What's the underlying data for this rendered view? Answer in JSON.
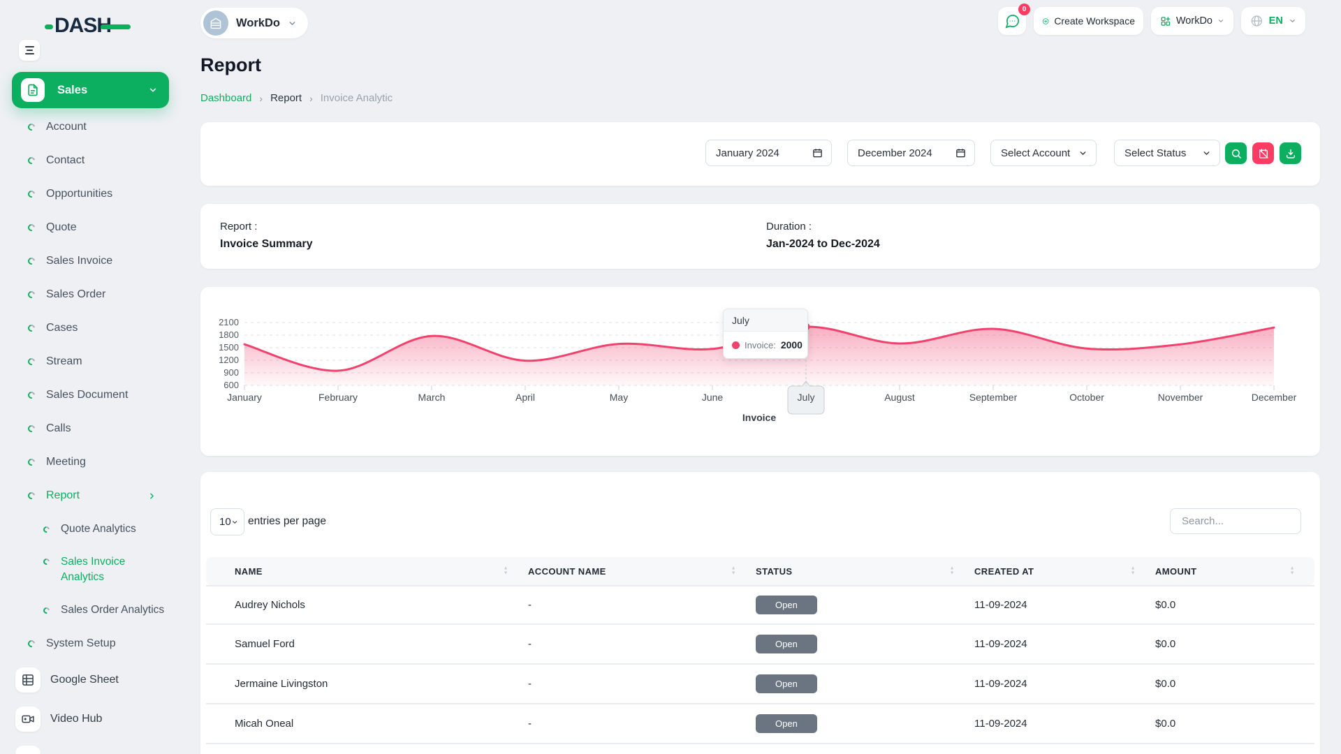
{
  "brand": {
    "name": "DASH"
  },
  "workspace_switcher": {
    "name": "WorkDo"
  },
  "header": {
    "messages_badge": "0",
    "create_workspace_label": "Create Workspace",
    "workspace_menu_label": "WorkDo",
    "language_label": "EN"
  },
  "sidebar": {
    "group": {
      "label": "Sales"
    },
    "items": [
      {
        "label": "Account",
        "kind": "item",
        "icon": "circle-bullet-icon"
      },
      {
        "label": "Contact",
        "kind": "item",
        "icon": "circle-bullet-icon"
      },
      {
        "label": "Opportunities",
        "kind": "item",
        "icon": "circle-bullet-icon"
      },
      {
        "label": "Quote",
        "kind": "item",
        "icon": "circle-bullet-icon"
      },
      {
        "label": "Sales Invoice",
        "kind": "item",
        "icon": "circle-bullet-icon"
      },
      {
        "label": "Sales Order",
        "kind": "item",
        "icon": "circle-bullet-icon"
      },
      {
        "label": "Cases",
        "kind": "item",
        "icon": "circle-bullet-icon"
      },
      {
        "label": "Stream",
        "kind": "item",
        "icon": "circle-bullet-icon"
      },
      {
        "label": "Sales Document",
        "kind": "item",
        "icon": "circle-bullet-icon"
      },
      {
        "label": "Calls",
        "kind": "item",
        "icon": "circle-bullet-icon"
      },
      {
        "label": "Meeting",
        "kind": "item",
        "icon": "circle-bullet-icon"
      },
      {
        "label": "Report",
        "kind": "item",
        "icon": "circle-bullet-icon",
        "active": true,
        "chevron": "right"
      },
      {
        "label": "Quote Analytics",
        "kind": "sub",
        "icon": "circle-bullet-icon"
      },
      {
        "label": "Sales Invoice Analytics",
        "kind": "sub",
        "icon": "circle-bullet-icon",
        "active": true,
        "wrap": true
      },
      {
        "label": "Sales Order Analytics",
        "kind": "sub",
        "icon": "circle-bullet-icon"
      },
      {
        "label": "System Setup",
        "kind": "item",
        "icon": "circle-bullet-icon"
      },
      {
        "label": "Google Sheet",
        "kind": "app",
        "icon": "sheet-icon"
      },
      {
        "label": "Video Hub",
        "kind": "app",
        "icon": "video-icon"
      },
      {
        "label": "",
        "kind": "app",
        "icon": "more-icon"
      }
    ]
  },
  "page": {
    "title": "Report",
    "breadcrumb": [
      "Dashboard",
      "Report",
      "Invoice Analytic"
    ]
  },
  "filters": {
    "from_value": "January 2024",
    "to_value": "December 2024",
    "account_value": "Select Account",
    "status_value": "Select Status"
  },
  "summary": {
    "report_label": "Report :",
    "report_value": "Invoice Summary",
    "duration_label": "Duration :",
    "duration_value": "Jan-2024 to Dec-2024"
  },
  "chart_data": {
    "type": "area",
    "x": [
      "January",
      "February",
      "March",
      "April",
      "May",
      "June",
      "July",
      "August",
      "September",
      "October",
      "November",
      "December"
    ],
    "series": [
      {
        "name": "Invoice",
        "values": [
          1580,
          950,
          1780,
          1190,
          1590,
          1470,
          2000,
          1600,
          1950,
          1480,
          1580,
          1980
        ]
      }
    ],
    "ylim": [
      600,
      2100
    ],
    "yticks": [
      600,
      900,
      1200,
      1500,
      1800,
      2100
    ],
    "grid": "horizontal-dashed",
    "legend": "Invoice",
    "legend_position": "bottom",
    "line_color": "#f1416c",
    "tooltip": {
      "month": "July",
      "series_label": "Invoice:",
      "value": "2000",
      "highlight_index": 6
    }
  },
  "table": {
    "page_size": "10",
    "page_size_suffix": "entries per page",
    "search_placeholder": "Search...",
    "columns": [
      "NAME",
      "ACCOUNT NAME",
      "STATUS",
      "CREATED AT",
      "AMOUNT"
    ],
    "rows": [
      {
        "name": "Audrey Nichols",
        "account_name": "-",
        "status": "Open",
        "created_at": "11-09-2024",
        "amount": "$0.0"
      },
      {
        "name": "Samuel Ford",
        "account_name": "-",
        "status": "Open",
        "created_at": "11-09-2024",
        "amount": "$0.0"
      },
      {
        "name": "Jermaine Livingston",
        "account_name": "-",
        "status": "Open",
        "created_at": "11-09-2024",
        "amount": "$0.0"
      },
      {
        "name": "Micah Oneal",
        "account_name": "-",
        "status": "Open",
        "created_at": "11-09-2024",
        "amount": "$0.0"
      }
    ]
  },
  "colors": {
    "primary": "#0caf60",
    "chart_line": "#f1416c",
    "status_badge": "#6b7582",
    "notification_badge": "#fb3d64"
  }
}
